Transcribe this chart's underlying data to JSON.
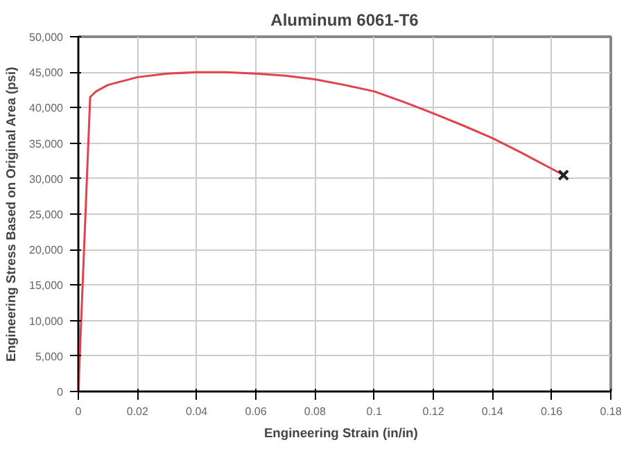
{
  "chart_data": {
    "type": "line",
    "title": "Aluminum 6061-T6",
    "xlabel": "Engineering Strain   (in/in)",
    "ylabel": "Engineering Stress Based on Original Area (psi)",
    "xlim": [
      0,
      0.18
    ],
    "xticks": [
      0,
      0.02,
      0.04,
      0.06,
      0.08,
      0.1,
      0.12,
      0.14,
      0.16,
      0.18
    ],
    "ylim": [
      0,
      50000
    ],
    "yticks": [
      0,
      {
        "value": 5000,
        "label": "5,000"
      },
      {
        "value": 10000,
        "label": "10,000"
      },
      {
        "value": 15000,
        "label": "15,000"
      },
      {
        "value": 20000,
        "label": "20,000"
      },
      {
        "value": 25000,
        "label": "25,000"
      },
      {
        "value": 30000,
        "label": "30,000"
      },
      {
        "value": 35000,
        "label": "35,000"
      },
      {
        "value": 40000,
        "label": "40,000"
      },
      {
        "value": 45000,
        "label": "45,000"
      },
      {
        "value": 50000,
        "label": "50,000"
      }
    ],
    "grid": true,
    "series": [
      {
        "color": "#e0424e",
        "marker": "none",
        "x": [
          0,
          0.004,
          0.006,
          0.01,
          0.02,
          0.03,
          0.04,
          0.05,
          0.06,
          0.07,
          0.08,
          0.09,
          0.1,
          0.11,
          0.12,
          0.13,
          0.14,
          0.15,
          0.16,
          0.164
        ],
        "values": [
          0,
          41500,
          42300,
          43200,
          44300,
          44800,
          45000,
          45000,
          44800,
          44500,
          44000,
          43200,
          42300,
          40800,
          39200,
          37500,
          35700,
          33600,
          31400,
          30500
        ]
      },
      {
        "type": "scatter",
        "color": "#222222",
        "marker": "cross",
        "x": [
          0.164
        ],
        "values": [
          30500
        ]
      }
    ]
  }
}
